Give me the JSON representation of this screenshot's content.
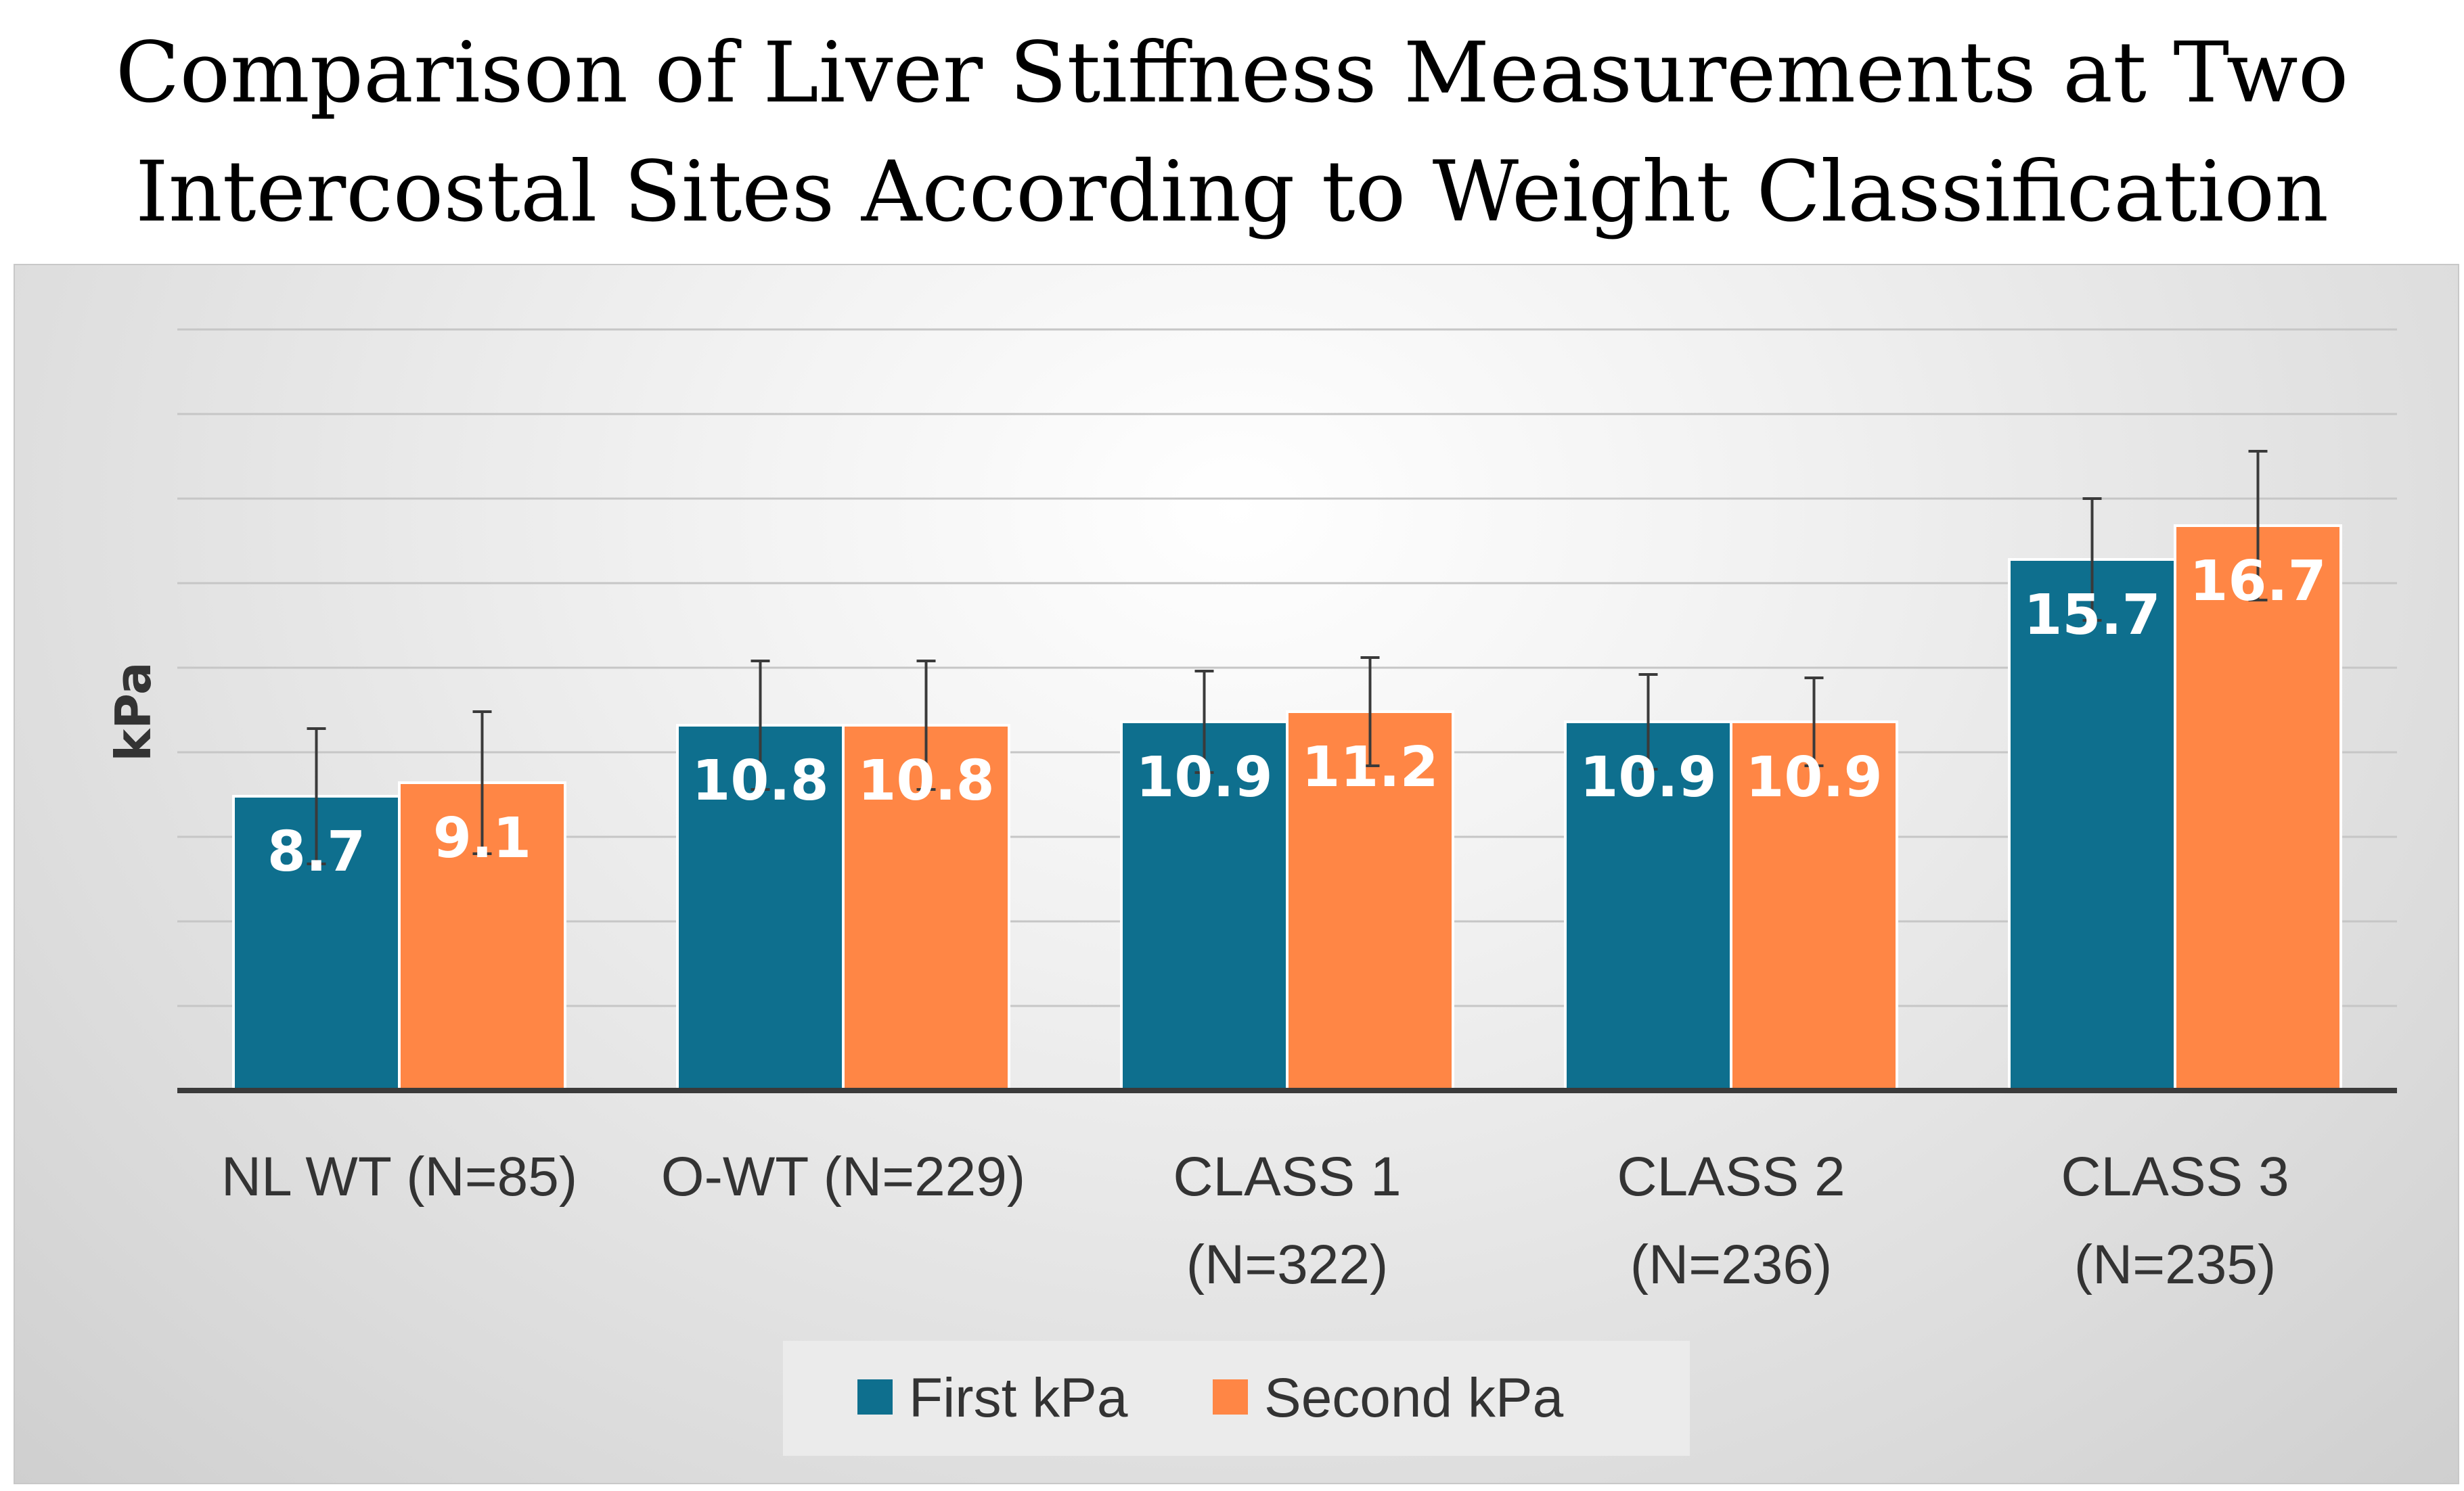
{
  "chart_data": {
    "type": "bar",
    "title_lines": [
      "Comparison of Liver Stiffness Measurements at Two",
      "Intercostal Sites According to Weight Classification"
    ],
    "ylabel": "kPa",
    "xlabel": "",
    "ylim": [
      0,
      22.5
    ],
    "y_grid_step": 2.5,
    "grid": true,
    "legend_position": "bottom",
    "categories": [
      [
        "NL WT (N=85)"
      ],
      [
        "O-WT (N=229)"
      ],
      [
        "CLASS 1",
        "(N=322)"
      ],
      [
        "CLASS 2",
        "(N=236)"
      ],
      [
        "CLASS 3",
        "(N=235)"
      ]
    ],
    "series": [
      {
        "name": "First kPa",
        "color": "#0e6f8e",
        "values": [
          8.7,
          10.8,
          10.9,
          10.9,
          15.7
        ],
        "labels": [
          "8.7",
          "10.8",
          "10.9",
          "10.9",
          "15.7"
        ],
        "error": [
          2.0,
          1.9,
          1.5,
          1.4,
          1.8
        ]
      },
      {
        "name": "Second kPa",
        "color": "#ff8645",
        "values": [
          9.1,
          10.8,
          11.2,
          10.9,
          16.7
        ],
        "labels": [
          "9.1",
          "10.8",
          "11.2",
          "10.9",
          "16.7"
        ],
        "error": [
          2.1,
          1.9,
          1.6,
          1.3,
          2.2
        ]
      }
    ]
  }
}
